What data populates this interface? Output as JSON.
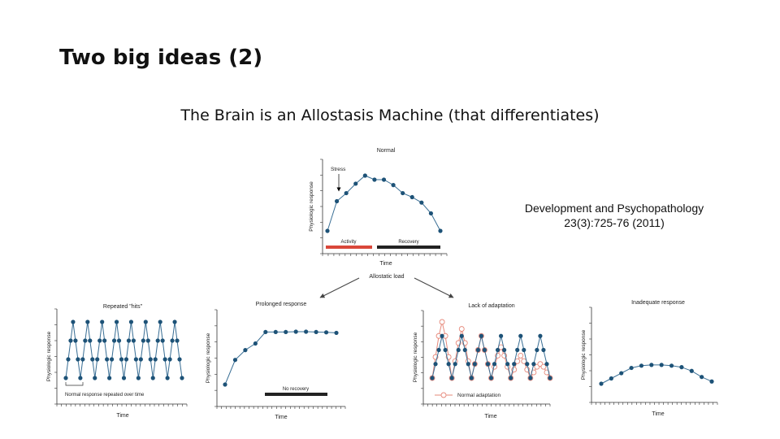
{
  "slide": {
    "title": "Two big ideas (2)",
    "subtitle": "The Brain is an Allostasis Machine (that differentiates)",
    "reference_line1": "Development and Psychopathology",
    "reference_line2": "23(3):725-76 (2011)"
  },
  "figure": {
    "arrows_label": "Allostatic load",
    "colors": {
      "line": "#3a6f95",
      "marker": "#1d5277",
      "activity": "#d9473a",
      "recovery": "#222222",
      "adaptation": "#e6887a"
    }
  },
  "chart_data": [
    {
      "type": "line",
      "title": "Normal",
      "ylabel": "Physiologic response",
      "xlabel": "Time",
      "annotation": "Stress",
      "bars": [
        {
          "label": "Activity",
          "color": "#d9473a"
        },
        {
          "label": "Recovery",
          "color": "#222222"
        }
      ],
      "series": [
        {
          "values": [
            1,
            3.2,
            3.8,
            4.5,
            5.1,
            4.8,
            4.8,
            4.4,
            3.8,
            3.5,
            3.1,
            2.3,
            1
          ]
        }
      ]
    },
    {
      "type": "line",
      "title": "Repeated \"hits\"",
      "ylabel": "Physiologic response",
      "xlabel": "Time",
      "annotation": "Normal response repeated over time",
      "series": [
        {
          "values": [
            1,
            2,
            3,
            4,
            3,
            2,
            1,
            2,
            3,
            4,
            3,
            2,
            1,
            2,
            3,
            4,
            3,
            2,
            1,
            2,
            3,
            4,
            3,
            2,
            1,
            2,
            3,
            4,
            3,
            2,
            1,
            2,
            3,
            4,
            3,
            2,
            1,
            2,
            3,
            4,
            3,
            2,
            1,
            2,
            3,
            4,
            3,
            2,
            1
          ]
        }
      ]
    },
    {
      "type": "line",
      "title": "Prolonged response",
      "ylabel": "Physiologic response",
      "xlabel": "Time",
      "bars": [
        {
          "label": "No recovery",
          "color": "#222222"
        }
      ],
      "series": [
        {
          "values": [
            1,
            2.5,
            3.1,
            3.5,
            4.2,
            4.2,
            4.2,
            4.22,
            4.22,
            4.2,
            4.18,
            4.15
          ]
        }
      ]
    },
    {
      "type": "line",
      "title": "Lack of adaptation",
      "ylabel": "Physiologic response",
      "xlabel": "Time",
      "legend": "Normal adaptation",
      "series": [
        {
          "values": [
            1,
            2,
            3,
            4,
            3,
            2,
            1,
            2,
            3,
            4,
            3,
            2,
            1,
            2,
            3,
            4,
            3,
            2,
            1,
            2,
            3,
            4,
            3,
            2,
            1,
            2,
            3,
            4,
            3,
            2,
            1,
            2,
            3,
            4,
            3,
            2,
            1
          ]
        },
        {
          "name": "Normal adaptation",
          "values": [
            1,
            2.5,
            4,
            5,
            4,
            2.5,
            1,
            2.2,
            3.5,
            4.5,
            3.5,
            2.2,
            1,
            2,
            3,
            4,
            3,
            2,
            1,
            1.8,
            2.6,
            3.2,
            2.6,
            1.8,
            1,
            1.6,
            2.2,
            2.6,
            2.2,
            1.6,
            1,
            1.4,
            1.8,
            2,
            1.8,
            1.4,
            1
          ]
        }
      ]
    },
    {
      "type": "line",
      "title": "Inadequate response",
      "ylabel": "Physiologic response",
      "xlabel": "Time",
      "series": [
        {
          "values": [
            1,
            1.35,
            1.7,
            2.05,
            2.2,
            2.25,
            2.25,
            2.2,
            2.1,
            1.85,
            1.45,
            1.15
          ]
        }
      ]
    }
  ]
}
